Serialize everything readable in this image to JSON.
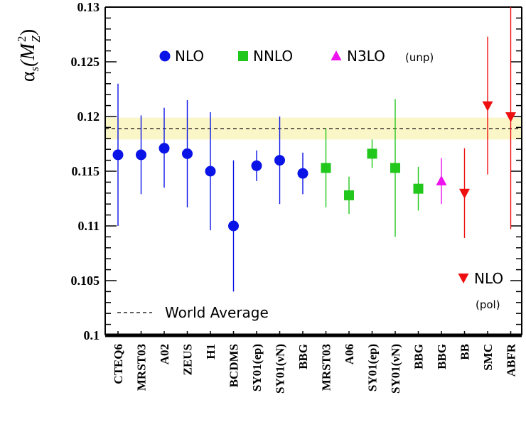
{
  "chart_data": {
    "type": "scatter",
    "ylabel": {
      "symbol": "α",
      "sub1": "s",
      "open": "(M",
      "sup": "2",
      "sub2": "Z",
      "close": ")"
    },
    "ylim": [
      0.1,
      0.13
    ],
    "yticks": [
      "0.1",
      "0.105",
      "0.11",
      "0.115",
      "0.12",
      "0.125",
      "0.13"
    ],
    "categories": [
      "CTEQ6",
      "MRST03",
      "A02",
      "ZEUS",
      "H1",
      "BCDMS",
      "SY01(ep)",
      "SY01(νN)",
      "BBG",
      "MRST03",
      "A06",
      "SY01(ep)",
      "SY01(νN)",
      "BBG",
      "BBG",
      "BB",
      "SMC",
      "ABFR"
    ],
    "world_average": {
      "label": "World Average",
      "value": 0.1189,
      "band": [
        0.1179,
        0.1199
      ],
      "band_color": "#fbf6c8",
      "line_color": "#000000"
    },
    "series": [
      {
        "name": "NLO",
        "marker": "circle",
        "color": "#0a14e6",
        "points": [
          {
            "category": 0,
            "value": 0.1165,
            "low": 0.11,
            "high": 0.123
          },
          {
            "category": 1,
            "value": 0.1165,
            "low": 0.1129,
            "high": 0.1201
          },
          {
            "category": 2,
            "value": 0.1171,
            "low": 0.1135,
            "high": 0.1208
          },
          {
            "category": 3,
            "value": 0.1166,
            "low": 0.1117,
            "high": 0.1215
          },
          {
            "category": 4,
            "value": 0.115,
            "low": 0.1096,
            "high": 0.1204
          },
          {
            "category": 5,
            "value": 0.11,
            "low": 0.104,
            "high": 0.116
          },
          {
            "category": 6,
            "value": 0.1155,
            "low": 0.1141,
            "high": 0.1169
          },
          {
            "category": 7,
            "value": 0.116,
            "low": 0.112,
            "high": 0.12
          },
          {
            "category": 8,
            "value": 0.1148,
            "low": 0.1129,
            "high": 0.1167
          }
        ]
      },
      {
        "name": "NNLO",
        "marker": "square",
        "color": "#22c71c",
        "points": [
          {
            "category": 9,
            "value": 0.1153,
            "low": 0.1117,
            "high": 0.1189
          },
          {
            "category": 10,
            "value": 0.1128,
            "low": 0.1111,
            "high": 0.1145
          },
          {
            "category": 11,
            "value": 0.1166,
            "low": 0.1153,
            "high": 0.1179
          },
          {
            "category": 12,
            "value": 0.1153,
            "low": 0.109,
            "high": 0.1216
          },
          {
            "category": 13,
            "value": 0.1134,
            "low": 0.1114,
            "high": 0.1154
          }
        ]
      },
      {
        "name": "N3LO",
        "name_suffix": "(unp)",
        "marker": "triangle-up",
        "color": "#ee12ee",
        "points": [
          {
            "category": 14,
            "value": 0.1141,
            "low": 0.112,
            "high": 0.1162
          }
        ]
      },
      {
        "name": "NLO",
        "name_suffix": "(pol)",
        "marker": "triangle-down",
        "color": "#ee1010",
        "points": [
          {
            "category": 15,
            "value": 0.113,
            "low": 0.1089,
            "high": 0.1171
          },
          {
            "category": 16,
            "value": 0.121,
            "low": 0.1147,
            "high": 0.1273
          },
          {
            "category": 17,
            "value": 0.12,
            "low": 0.1097,
            "high": 0.13
          }
        ]
      }
    ]
  }
}
